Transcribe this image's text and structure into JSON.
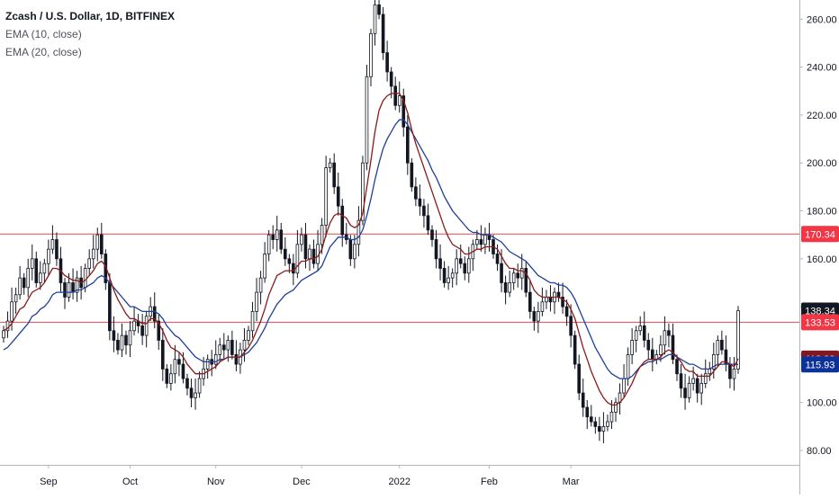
{
  "legend": {
    "title": "Zcash / U.S. Dollar, 1D, BITFINEX",
    "ema_fast": "EMA (10, close)",
    "ema_slow": "EMA (20, close)"
  },
  "colors": {
    "up": "#ffffff",
    "down": "#131722",
    "wick": "#131722",
    "ema_fast": "#8b1a1a",
    "ema_slow": "#1f3f9c",
    "hline": "#e0484e",
    "grid": "#ffffff",
    "axis": "#b2b5be"
  },
  "chart_data": {
    "type": "candlestick",
    "x_ticks": [
      "Sep",
      "Oct",
      "Nov",
      "Dec",
      "2022",
      "Feb",
      "Mar"
    ],
    "y_ticks": [
      "80.00",
      "100.00",
      "120.00",
      "140.00",
      "160.00",
      "180.00",
      "200.00",
      "220.00",
      "240.00",
      "260.00"
    ],
    "ylim": [
      74,
      268
    ],
    "price_badges": [
      {
        "label": "170.34",
        "value": 170.34,
        "bg": "#f23645",
        "fg": "#ffffff"
      },
      {
        "label": "138.34",
        "value": 138.34,
        "bg": "#131722",
        "fg": "#ffffff"
      },
      {
        "label": "133.53",
        "value": 133.53,
        "bg": "#f23645",
        "fg": "#ffffff"
      },
      {
        "label": "118.33",
        "value": 118.33,
        "bg": "#801922",
        "fg": "#ffffff"
      },
      {
        "label": "115.93",
        "value": 115.93,
        "bg": "#0c3299",
        "fg": "#ffffff"
      }
    ],
    "horizontal_lines": [
      170.34,
      133.53
    ],
    "closes": [
      130,
      134,
      142,
      145,
      152,
      148,
      156,
      160,
      150,
      154,
      158,
      164,
      168,
      160,
      150,
      144,
      150,
      146,
      152,
      148,
      156,
      160,
      164,
      170,
      162,
      150,
      130,
      126,
      122,
      128,
      124,
      130,
      134,
      132,
      128,
      136,
      140,
      134,
      126,
      114,
      108,
      112,
      118,
      116,
      110,
      106,
      102,
      104,
      110,
      114,
      118,
      116,
      120,
      124,
      122,
      126,
      120,
      116,
      122,
      126,
      130,
      138,
      146,
      152,
      162,
      170,
      168,
      172,
      164,
      160,
      158,
      154,
      166,
      170,
      160,
      164,
      158,
      166,
      174,
      198,
      200,
      190,
      182,
      170,
      168,
      160,
      166,
      176,
      200,
      236,
      254,
      266,
      262,
      246,
      238,
      232,
      224,
      228,
      215,
      200,
      190,
      185,
      182,
      178,
      172,
      168,
      160,
      156,
      150,
      152,
      154,
      160,
      158,
      154,
      160,
      166,
      168,
      166,
      170,
      168,
      162,
      158,
      150,
      146,
      150,
      154,
      152,
      156,
      146,
      138,
      134,
      138,
      142,
      144,
      142,
      146,
      144,
      140,
      136,
      128,
      116,
      104,
      98,
      94,
      92,
      90,
      88,
      90,
      92,
      96,
      100,
      104,
      110,
      120,
      126,
      130,
      132,
      126,
      122,
      118,
      120,
      124,
      130,
      128,
      118,
      112,
      106,
      102,
      108,
      110,
      104,
      108,
      112,
      114,
      120,
      126,
      122,
      116,
      110,
      114,
      138.34
    ],
    "ema_10": [
      130,
      131,
      133,
      136,
      139,
      140,
      143,
      146,
      147,
      148,
      150,
      153,
      156,
      156,
      155,
      153,
      152,
      151,
      151,
      150,
      151,
      153,
      155,
      158,
      159,
      157,
      152,
      147,
      143,
      140,
      137,
      135,
      135,
      134,
      133,
      133,
      135,
      135,
      133,
      130,
      126,
      123,
      122,
      121,
      119,
      116,
      114,
      112,
      112,
      112,
      113,
      114,
      115,
      117,
      118,
      119,
      119,
      119,
      119,
      121,
      123,
      126,
      130,
      134,
      139,
      145,
      149,
      153,
      154,
      155,
      155,
      155,
      157,
      159,
      159,
      160,
      160,
      161,
      164,
      170,
      175,
      178,
      179,
      178,
      177,
      174,
      173,
      174,
      179,
      190,
      201,
      213,
      222,
      226,
      228,
      229,
      229,
      229,
      226,
      221,
      214,
      208,
      203,
      198,
      193,
      188,
      183,
      178,
      173,
      169,
      166,
      165,
      164,
      162,
      162,
      163,
      164,
      164,
      165,
      165,
      165,
      164,
      161,
      158,
      156,
      156,
      155,
      155,
      154,
      151,
      147,
      145,
      144,
      144,
      144,
      144,
      144,
      143,
      142,
      139,
      135,
      129,
      123,
      118,
      113,
      109,
      105,
      102,
      100,
      99,
      99,
      100,
      102,
      105,
      108,
      112,
      115,
      117,
      118,
      118,
      118,
      119,
      121,
      122,
      121,
      119,
      117,
      114,
      113,
      113,
      111,
      111,
      111,
      111,
      113,
      115,
      117,
      117,
      116,
      115,
      118.33
    ],
    "ema_20": [
      122,
      123,
      125,
      127,
      129,
      131,
      133,
      136,
      137,
      139,
      140,
      142,
      145,
      146,
      146,
      146,
      146,
      146,
      147,
      147,
      148,
      149,
      150,
      152,
      153,
      152,
      150,
      148,
      146,
      144,
      142,
      140,
      140,
      139,
      138,
      138,
      138,
      138,
      137,
      135,
      132,
      130,
      128,
      127,
      125,
      123,
      121,
      119,
      118,
      117,
      117,
      117,
      117,
      118,
      118,
      119,
      119,
      119,
      119,
      120,
      121,
      123,
      125,
      128,
      131,
      135,
      138,
      141,
      143,
      145,
      146,
      147,
      149,
      151,
      152,
      153,
      154,
      155,
      157,
      161,
      165,
      167,
      169,
      169,
      169,
      168,
      168,
      169,
      172,
      178,
      185,
      193,
      200,
      206,
      210,
      213,
      216,
      218,
      218,
      216,
      213,
      210,
      207,
      204,
      201,
      197,
      194,
      190,
      186,
      183,
      180,
      178,
      176,
      174,
      172,
      171,
      171,
      170,
      170,
      170,
      169,
      168,
      167,
      165,
      163,
      162,
      161,
      160,
      159,
      157,
      155,
      153,
      152,
      151,
      150,
      150,
      149,
      149,
      148,
      146,
      143,
      139,
      135,
      131,
      127,
      123,
      120,
      117,
      114,
      112,
      111,
      110,
      110,
      110,
      111,
      113,
      115,
      116,
      117,
      117,
      118,
      118,
      119,
      120,
      120,
      119,
      118,
      117,
      116,
      116,
      115,
      114,
      114,
      114,
      115,
      116,
      116,
      116,
      116,
      116,
      115.93
    ]
  }
}
